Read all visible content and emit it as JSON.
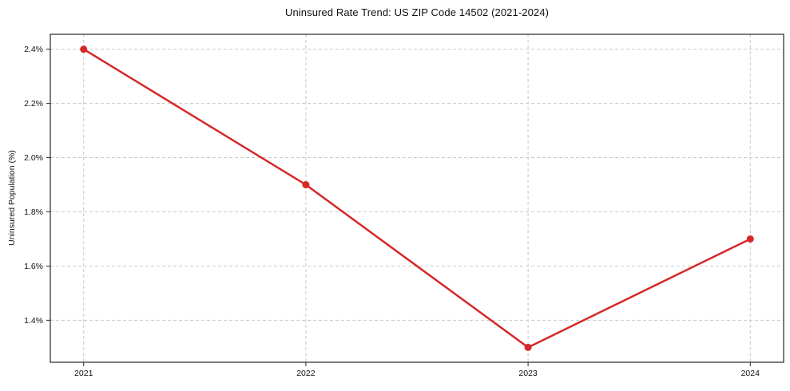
{
  "chart_data": {
    "type": "line",
    "title": "Uninsured Rate Trend: US ZIP Code 14502 (2021-2024)",
    "xlabel": "",
    "ylabel": "Uninsured Population (%)",
    "x": [
      2021,
      2022,
      2023,
      2024
    ],
    "series": [
      {
        "name": "Uninsured rate",
        "values": [
          2.4,
          1.9,
          1.3,
          1.7
        ]
      }
    ],
    "xtick_labels": [
      "2021",
      "2022",
      "2023",
      "2024"
    ],
    "ytick_values": [
      1.4,
      1.6,
      1.8,
      2.0,
      2.2,
      2.4
    ],
    "ytick_labels": [
      "1.4%",
      "1.6%",
      "1.8%",
      "2.0%",
      "2.2%",
      "2.4%"
    ],
    "xlim": [
      2020.85,
      2024.15
    ],
    "ylim": [
      1.245,
      2.455
    ],
    "grid": true,
    "grid_style": "dashed",
    "legend_position": "none",
    "line_color": "#d62728",
    "marker": "circle"
  }
}
